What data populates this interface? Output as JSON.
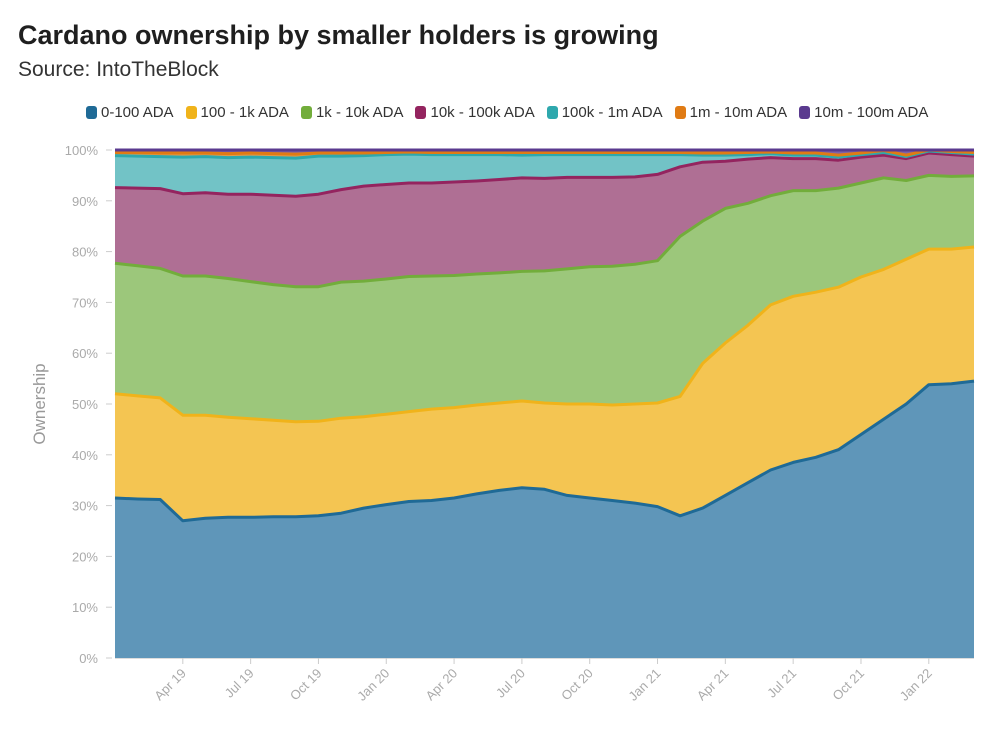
{
  "title": "Cardano ownership by smaller holders is growing",
  "subtitle": "Source: IntoTheBlock",
  "chart_data": {
    "type": "area",
    "stacked": true,
    "ylabel": "Ownership",
    "ylim": [
      0,
      100
    ],
    "y_ticks": [
      "0%",
      "10%",
      "20%",
      "30%",
      "40%",
      "50%",
      "60%",
      "70%",
      "80%",
      "90%",
      "100%"
    ],
    "x_ticks": [
      "Apr 19",
      "Jul 19",
      "Oct 19",
      "Jan 20",
      "Apr 20",
      "Jul 20",
      "Oct 20",
      "Jan 21",
      "Apr 21",
      "Jul 21",
      "Oct 21",
      "Jan 22"
    ],
    "x_range": [
      "Jan 19",
      "Mar 22"
    ],
    "legend_position": "top",
    "x": [
      "Jan 19",
      "Feb 19",
      "Mar 19",
      "Apr 19",
      "May 19",
      "Jun 19",
      "Jul 19",
      "Aug 19",
      "Sep 19",
      "Oct 19",
      "Nov 19",
      "Dec 19",
      "Jan 20",
      "Feb 20",
      "Mar 20",
      "Apr 20",
      "May 20",
      "Jun 20",
      "Jul 20",
      "Aug 20",
      "Sep 20",
      "Oct 20",
      "Nov 20",
      "Dec 20",
      "Jan 21",
      "Feb 21",
      "Mar 21",
      "Apr 21",
      "May 21",
      "Jun 21",
      "Jul 21",
      "Aug 21",
      "Sep 21",
      "Oct 21",
      "Nov 21",
      "Dec 21",
      "Jan 22",
      "Feb 22",
      "Mar 22"
    ],
    "series": [
      {
        "name": "0-100 ADA",
        "color": "#1f6a96",
        "fill": "#5f96b9",
        "values": [
          31.5,
          31.3,
          31.2,
          27.0,
          27.5,
          27.7,
          27.7,
          27.8,
          27.8,
          28.0,
          28.5,
          29.5,
          30.2,
          30.8,
          31.0,
          31.5,
          32.3,
          33.0,
          33.5,
          33.2,
          32.0,
          31.5,
          31.0,
          30.5,
          29.8,
          28.0,
          29.5,
          32.0,
          34.5,
          37.0,
          38.5,
          39.5,
          41.0,
          44.0,
          47.0,
          50.0,
          53.8,
          54.0,
          54.5
        ]
      },
      {
        "name": "100 - 1k ADA",
        "color": "#f0b31a",
        "fill": "#f4c552",
        "values": [
          20.5,
          20.3,
          20.0,
          20.8,
          20.3,
          19.7,
          19.4,
          19.0,
          18.7,
          18.6,
          18.7,
          18.0,
          17.8,
          17.7,
          18.0,
          17.8,
          17.5,
          17.2,
          17.1,
          17.0,
          18.0,
          18.5,
          18.8,
          19.5,
          20.4,
          23.5,
          28.5,
          30.0,
          31.0,
          32.5,
          32.7,
          32.5,
          32.0,
          31.0,
          29.5,
          28.5,
          26.7,
          26.5,
          26.4
        ]
      },
      {
        "name": "1k - 10k ADA",
        "color": "#72ad3b",
        "fill": "#9cc77b",
        "values": [
          25.7,
          25.6,
          25.5,
          27.4,
          27.4,
          27.3,
          27.0,
          26.7,
          26.6,
          26.5,
          26.8,
          26.7,
          26.6,
          26.6,
          26.2,
          26.0,
          25.8,
          25.6,
          25.5,
          26.0,
          26.6,
          27.0,
          27.3,
          27.5,
          28.0,
          31.5,
          28.0,
          26.5,
          24.0,
          21.5,
          20.8,
          20.0,
          19.5,
          18.5,
          18.0,
          15.5,
          14.5,
          14.3,
          14.0
        ]
      },
      {
        "name": "10k - 100k ADA",
        "color": "#94245f",
        "fill": "#af6f94",
        "values": [
          14.9,
          15.3,
          15.7,
          16.2,
          16.4,
          16.6,
          17.2,
          17.6,
          17.8,
          18.2,
          18.2,
          18.7,
          18.6,
          18.4,
          18.3,
          18.4,
          18.3,
          18.4,
          18.4,
          18.2,
          18.0,
          17.6,
          17.5,
          17.2,
          17.0,
          13.7,
          11.6,
          9.3,
          8.7,
          7.5,
          6.3,
          6.3,
          5.5,
          5.1,
          4.5,
          4.3,
          4.4,
          4.3,
          3.9
        ]
      },
      {
        "name": "100k - 1m ADA",
        "color": "#2ea8ad",
        "fill": "#72c3c6",
        "values": [
          6.3,
          6.3,
          6.3,
          7.2,
          7.1,
          7.2,
          7.3,
          7.4,
          7.5,
          7.5,
          6.6,
          6.0,
          5.9,
          5.7,
          5.6,
          5.4,
          5.2,
          4.9,
          4.5,
          4.7,
          4.5,
          4.5,
          4.5,
          4.4,
          3.9,
          2.4,
          1.4,
          1.2,
          0.9,
          0.8,
          0.7,
          0.7,
          0.6,
          0.5,
          0.5,
          0.4,
          0.4,
          0.4,
          0.4
        ]
      },
      {
        "name": "1m - 10m ADA",
        "color": "#e07b14",
        "fill": "#e59a4a",
        "values": [
          0.6,
          0.7,
          0.7,
          0.8,
          0.7,
          0.8,
          0.8,
          0.8,
          0.8,
          0.6,
          0.6,
          0.5,
          0.4,
          0.4,
          0.4,
          0.4,
          0.4,
          0.4,
          0.5,
          0.4,
          0.4,
          0.4,
          0.4,
          0.4,
          0.4,
          0.4,
          0.4,
          0.4,
          0.4,
          0.3,
          0.4,
          0.4,
          0.4,
          0.3,
          0.4,
          0.3,
          0.2,
          0.2,
          0.3
        ]
      },
      {
        "name": "10m - 100m ADA",
        "color": "#5a3a8f",
        "fill": "#7f62a8",
        "values": [
          0.5,
          0.5,
          0.6,
          0.6,
          0.6,
          0.7,
          0.6,
          0.7,
          0.8,
          0.6,
          0.6,
          0.6,
          0.5,
          0.4,
          0.5,
          0.5,
          0.5,
          0.5,
          0.5,
          0.5,
          0.5,
          0.5,
          0.5,
          0.5,
          0.5,
          0.5,
          0.6,
          0.6,
          0.5,
          0.4,
          0.6,
          0.6,
          1.0,
          0.6,
          0.1,
          1.0,
          0.0,
          0.3,
          0.5
        ]
      }
    ]
  }
}
